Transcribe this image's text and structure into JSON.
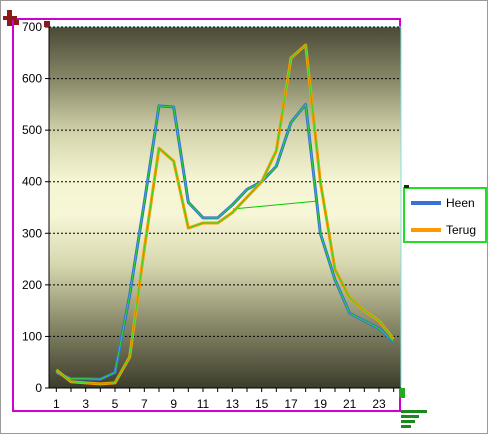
{
  "chart_data": {
    "type": "line",
    "title": "",
    "xlabel": "",
    "ylabel": "",
    "x": [
      1,
      2,
      3,
      4,
      5,
      6,
      7,
      8,
      9,
      10,
      11,
      12,
      13,
      14,
      15,
      16,
      17,
      18,
      19,
      20,
      21,
      22,
      23,
      24
    ],
    "x_tick_labels": [
      "1",
      "3",
      "5",
      "7",
      "9",
      "11",
      "13",
      "15",
      "17",
      "19",
      "21",
      "23"
    ],
    "ylim": [
      0,
      700
    ],
    "y_ticks": [
      0,
      100,
      200,
      300,
      400,
      500,
      600,
      700
    ],
    "y_tick_labels": [
      "0",
      "100",
      "200",
      "300",
      "400",
      "500",
      "600",
      "700"
    ],
    "grid": "horizontal dashed",
    "legend_position": "right",
    "series": [
      {
        "name": "Heen",
        "color": "#3a6fd8",
        "values": [
          30,
          18,
          18,
          17,
          30,
          180,
          360,
          547,
          545,
          360,
          330,
          330,
          355,
          385,
          400,
          430,
          515,
          550,
          300,
          210,
          145,
          130,
          115,
          90
        ]
      },
      {
        "name": "Terug",
        "color": "#ff9900",
        "values": [
          35,
          12,
          10,
          8,
          10,
          60,
          270,
          465,
          440,
          310,
          320,
          320,
          340,
          370,
          400,
          460,
          640,
          665,
          400,
          230,
          175,
          150,
          130,
          95
        ]
      }
    ],
    "background": "radial gradient dark olive to pale yellow"
  },
  "legend": {
    "items": [
      {
        "label": "Heen",
        "color": "#3a6fd8"
      },
      {
        "label": "Terug",
        "color": "#ff9900"
      }
    ]
  }
}
